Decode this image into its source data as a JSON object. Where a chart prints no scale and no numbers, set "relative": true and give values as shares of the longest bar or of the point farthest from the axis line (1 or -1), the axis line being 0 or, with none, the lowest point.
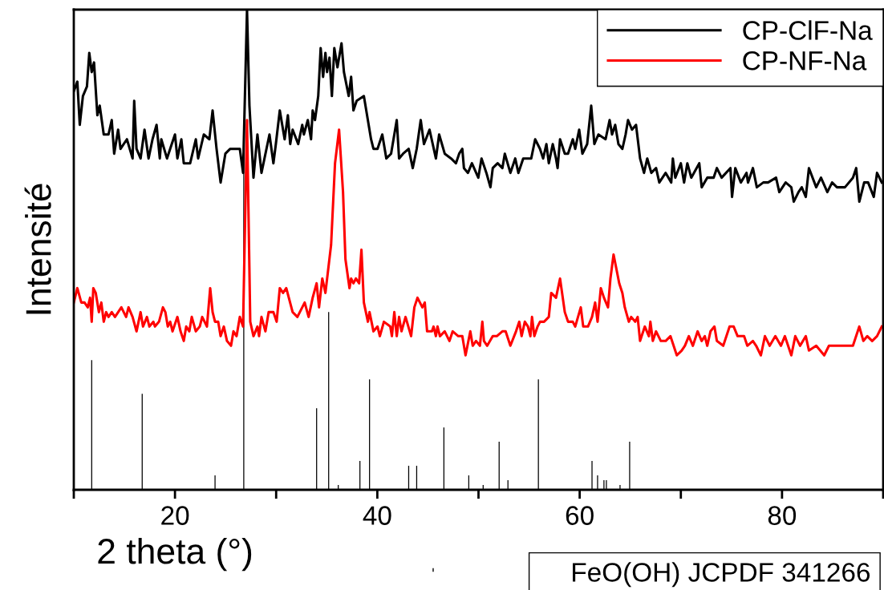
{
  "chart_data": {
    "type": "line",
    "relative": true,
    "xlabel": "2 theta (°)",
    "ylabel": "Intensité",
    "xlim": [
      10,
      90
    ],
    "xticks": [
      {
        "value": 10,
        "label": null
      },
      20,
      {
        "value": 30,
        "label": null
      },
      40,
      {
        "value": 50,
        "label": null
      },
      60,
      {
        "value": 70,
        "label": null
      },
      80,
      {
        "value": 90,
        "label": null
      }
    ],
    "legend": "top right",
    "grid": false,
    "series": [
      {
        "name": "CP-ClF-Na",
        "color": "#000000",
        "x": [
          10.0,
          10.35,
          10.59,
          10.9,
          11.3,
          11.53,
          11.77,
          12.0,
          12.33,
          12.56,
          12.96,
          13.43,
          13.75,
          13.99,
          14.38,
          14.62,
          15.25,
          15.81,
          15.97,
          16.2,
          16.6,
          16.99,
          17.39,
          17.78,
          18.18,
          18.5,
          18.65,
          19.21,
          19.68,
          20.0,
          20.24,
          20.63,
          20.87,
          21.5,
          22.06,
          22.29,
          22.85,
          23.4,
          23.72,
          24.11,
          24.51,
          24.98,
          25.46,
          25.93,
          26.41,
          26.73,
          27.12,
          27.36,
          27.76,
          28.15,
          28.55,
          29.34,
          29.73,
          29.97,
          30.36,
          30.84,
          31.16,
          31.39,
          31.63,
          32.18,
          32.58,
          32.74,
          33.13,
          33.45,
          33.61,
          33.84,
          34.16,
          34.4,
          34.64,
          34.87,
          35.03,
          35.27,
          35.51,
          35.75,
          36.06,
          36.46,
          36.7,
          37.17,
          37.41,
          37.64,
          37.96,
          38.67,
          39.38,
          39.62,
          40.02,
          40.49,
          40.89,
          41.36,
          41.92,
          42.15,
          42.55,
          43.1,
          43.5,
          43.89,
          44.29,
          44.61,
          45.16,
          45.79,
          46.11,
          46.66,
          47.29,
          47.77,
          48.09,
          48.4,
          48.56,
          48.96,
          49.35,
          49.98,
          50.3,
          50.78,
          51.18,
          51.41,
          51.89,
          52.36,
          52.6,
          53.15,
          53.63,
          53.94,
          54.42,
          55.21,
          55.6,
          56.08,
          56.39,
          56.71,
          56.95,
          57.34,
          57.66,
          57.82,
          58.06,
          58.53,
          58.85,
          59.32,
          59.56,
          59.95,
          60.27,
          60.74,
          61.14,
          61.45,
          61.85,
          62.56,
          62.96,
          63.2,
          63.51,
          63.83,
          64.22,
          64.54,
          64.78,
          65.17,
          65.57,
          65.97,
          66.36,
          66.68,
          67.08,
          67.55,
          67.87,
          68.5,
          69.05,
          69.21,
          69.45,
          70.0,
          70.32,
          70.64,
          71.03,
          71.82,
          72.06,
          72.61,
          73.24,
          73.56,
          74.03,
          74.9,
          75.06,
          75.38,
          75.93,
          76.49,
          76.64,
          77.12,
          77.51,
          78.15,
          78.62,
          79.41,
          79.73,
          80.36,
          80.92,
          81.16,
          81.63,
          81.95,
          82.35,
          82.66,
          83.38,
          83.85,
          84.48,
          84.95,
          85.43,
          86.22,
          87.01,
          87.33,
          87.64,
          88.12,
          88.51,
          89.07,
          89.39,
          89.86
        ],
        "values": [
          0.83,
          0.85,
          0.76,
          0.82,
          0.84,
          0.91,
          0.87,
          0.89,
          0.78,
          0.8,
          0.74,
          0.74,
          0.77,
          0.7,
          0.75,
          0.71,
          0.73,
          0.69,
          0.81,
          0.71,
          0.69,
          0.75,
          0.69,
          0.73,
          0.76,
          0.69,
          0.73,
          0.69,
          0.72,
          0.74,
          0.69,
          0.73,
          0.68,
          0.68,
          0.73,
          0.69,
          0.74,
          0.73,
          0.79,
          0.71,
          0.64,
          0.7,
          0.71,
          0.71,
          0.71,
          0.66,
          1.0,
          0.8,
          0.65,
          0.74,
          0.66,
          0.74,
          0.68,
          0.72,
          0.79,
          0.73,
          0.78,
          0.72,
          0.75,
          0.72,
          0.76,
          0.74,
          0.77,
          0.73,
          0.79,
          0.77,
          0.82,
          0.92,
          0.86,
          0.91,
          0.87,
          0.9,
          0.82,
          0.92,
          0.88,
          0.93,
          0.87,
          0.82,
          0.86,
          0.79,
          0.81,
          0.82,
          0.73,
          0.71,
          0.71,
          0.74,
          0.69,
          0.7,
          0.77,
          0.69,
          0.7,
          0.71,
          0.67,
          0.71,
          0.77,
          0.72,
          0.75,
          0.69,
          0.74,
          0.7,
          0.69,
          0.68,
          0.7,
          0.71,
          0.67,
          0.66,
          0.68,
          0.65,
          0.69,
          0.66,
          0.63,
          0.67,
          0.68,
          0.67,
          0.7,
          0.66,
          0.69,
          0.66,
          0.69,
          0.69,
          0.73,
          0.71,
          0.69,
          0.72,
          0.68,
          0.72,
          0.69,
          0.67,
          0.73,
          0.7,
          0.7,
          0.73,
          0.71,
          0.75,
          0.7,
          0.72,
          0.8,
          0.72,
          0.74,
          0.73,
          0.77,
          0.74,
          0.76,
          0.72,
          0.71,
          0.74,
          0.77,
          0.75,
          0.76,
          0.69,
          0.66,
          0.69,
          0.66,
          0.67,
          0.64,
          0.66,
          0.64,
          0.69,
          0.65,
          0.68,
          0.64,
          0.68,
          0.65,
          0.68,
          0.63,
          0.65,
          0.65,
          0.67,
          0.65,
          0.67,
          0.61,
          0.67,
          0.64,
          0.66,
          0.64,
          0.67,
          0.63,
          0.64,
          0.64,
          0.65,
          0.62,
          0.64,
          0.63,
          0.6,
          0.62,
          0.63,
          0.61,
          0.67,
          0.63,
          0.65,
          0.62,
          0.64,
          0.63,
          0.63,
          0.65,
          0.67,
          0.6,
          0.64,
          0.64,
          0.61,
          0.66,
          0.64
        ]
      },
      {
        "name": "CP-NF-Na",
        "color": "#ff0000",
        "x": [
          10.0,
          10.35,
          10.74,
          11.06,
          11.38,
          11.61,
          11.77,
          11.93,
          12.17,
          12.48,
          12.72,
          12.96,
          13.2,
          13.43,
          13.75,
          14.07,
          14.7,
          15.17,
          15.41,
          15.81,
          16.2,
          16.6,
          16.84,
          17.23,
          17.47,
          17.86,
          18.02,
          18.42,
          18.81,
          19.05,
          19.29,
          19.53,
          19.76,
          20.24,
          20.55,
          20.87,
          21.11,
          21.42,
          21.66,
          22.06,
          22.45,
          22.69,
          23.16,
          23.48,
          23.72,
          23.96,
          24.27,
          24.51,
          24.83,
          25.14,
          25.54,
          25.78,
          26.09,
          26.41,
          26.73,
          27.12,
          27.44,
          27.76,
          28.15,
          28.31,
          28.55,
          28.94,
          29.26,
          29.73,
          30.05,
          30.36,
          30.68,
          31.0,
          31.63,
          32.1,
          32.82,
          33.21,
          33.61,
          34.0,
          34.24,
          34.56,
          34.87,
          35.43,
          35.82,
          36.22,
          36.61,
          36.85,
          37.25,
          37.41,
          37.64,
          37.88,
          38.2,
          38.43,
          38.67,
          39.07,
          39.23,
          39.62,
          40.02,
          40.25,
          40.65,
          41.28,
          41.44,
          41.68,
          41.92,
          42.15,
          42.39,
          42.79,
          43.34,
          43.66,
          43.97,
          44.45,
          44.69,
          44.92,
          45.4,
          45.56,
          45.79,
          45.95,
          46.19,
          46.66,
          47.13,
          47.45,
          48.0,
          48.4,
          48.72,
          49.19,
          49.43,
          49.75,
          50.14,
          50.38,
          50.54,
          50.86,
          51.41,
          51.81,
          52.36,
          52.68,
          53.15,
          53.71,
          54.03,
          54.26,
          54.58,
          54.89,
          55.13,
          55.29,
          55.52,
          55.84,
          56.08,
          56.48,
          56.95,
          57.19,
          57.66,
          58.06,
          58.53,
          58.85,
          59.32,
          59.56,
          60.11,
          60.35,
          60.82,
          61.22,
          61.53,
          61.77,
          62.09,
          62.4,
          62.8,
          63.04,
          63.35,
          63.91,
          64.22,
          64.46,
          64.86,
          65.09,
          65.49,
          65.73,
          65.97,
          66.44,
          66.84,
          66.99,
          67.23,
          67.55,
          68.02,
          68.5,
          68.97,
          69.6,
          70.08,
          70.4,
          70.79,
          71.19,
          71.66,
          72.06,
          72.37,
          72.61,
          72.93,
          73.32,
          73.56,
          74.19,
          74.82,
          75.22,
          75.61,
          76.25,
          76.57,
          77.12,
          77.44,
          77.91,
          78.31,
          78.78,
          79.34,
          79.89,
          80.28,
          80.92,
          81.31,
          81.79,
          82.35,
          82.66,
          83.38,
          84.17,
          84.64,
          85.59,
          86.38,
          87.01,
          87.64,
          88.04,
          88.43,
          88.91,
          89.39,
          89.86
        ],
        "values": [
          0.39,
          0.42,
          0.39,
          0.39,
          0.38,
          0.4,
          0.35,
          0.42,
          0.41,
          0.37,
          0.39,
          0.35,
          0.37,
          0.36,
          0.37,
          0.36,
          0.38,
          0.36,
          0.38,
          0.36,
          0.33,
          0.37,
          0.34,
          0.36,
          0.34,
          0.35,
          0.34,
          0.35,
          0.38,
          0.37,
          0.34,
          0.35,
          0.33,
          0.36,
          0.33,
          0.31,
          0.34,
          0.33,
          0.36,
          0.33,
          0.34,
          0.36,
          0.34,
          0.42,
          0.37,
          0.35,
          0.35,
          0.32,
          0.34,
          0.31,
          0.3,
          0.33,
          0.32,
          0.36,
          0.34,
          0.77,
          0.35,
          0.32,
          0.34,
          0.32,
          0.36,
          0.33,
          0.37,
          0.37,
          0.35,
          0.42,
          0.41,
          0.42,
          0.37,
          0.36,
          0.39,
          0.36,
          0.4,
          0.43,
          0.38,
          0.44,
          0.41,
          0.51,
          0.68,
          0.75,
          0.62,
          0.48,
          0.42,
          0.44,
          0.43,
          0.44,
          0.43,
          0.5,
          0.39,
          0.35,
          0.37,
          0.33,
          0.34,
          0.32,
          0.35,
          0.34,
          0.32,
          0.37,
          0.32,
          0.36,
          0.33,
          0.36,
          0.32,
          0.38,
          0.4,
          0.38,
          0.39,
          0.33,
          0.33,
          0.34,
          0.32,
          0.34,
          0.32,
          0.33,
          0.31,
          0.33,
          0.32,
          0.32,
          0.28,
          0.33,
          0.3,
          0.31,
          0.3,
          0.35,
          0.31,
          0.3,
          0.32,
          0.32,
          0.33,
          0.33,
          0.3,
          0.33,
          0.35,
          0.32,
          0.35,
          0.34,
          0.32,
          0.36,
          0.32,
          0.34,
          0.35,
          0.35,
          0.36,
          0.41,
          0.4,
          0.44,
          0.37,
          0.35,
          0.35,
          0.34,
          0.38,
          0.34,
          0.34,
          0.36,
          0.39,
          0.35,
          0.42,
          0.4,
          0.38,
          0.44,
          0.49,
          0.43,
          0.41,
          0.38,
          0.35,
          0.36,
          0.35,
          0.36,
          0.31,
          0.34,
          0.32,
          0.35,
          0.31,
          0.33,
          0.31,
          0.31,
          0.32,
          0.28,
          0.29,
          0.3,
          0.32,
          0.3,
          0.33,
          0.31,
          0.32,
          0.3,
          0.33,
          0.34,
          0.31,
          0.3,
          0.34,
          0.34,
          0.32,
          0.32,
          0.3,
          0.31,
          0.3,
          0.28,
          0.32,
          0.3,
          0.32,
          0.3,
          0.32,
          0.28,
          0.32,
          0.3,
          0.32,
          0.29,
          0.3,
          0.28,
          0.3,
          0.3,
          0.3,
          0.3,
          0.34,
          0.31,
          0.32,
          0.31,
          0.32,
          0.34
        ]
      },
      {
        "name": "FeO(OH) JCPDF 341266",
        "type": "bar",
        "color": "#000000",
        "x": [
          11.77,
          16.76,
          23.96,
          26.8,
          34.0,
          35.19,
          36.14,
          38.28,
          39.23,
          43.1,
          43.89,
          46.58,
          49.04,
          50.46,
          52.04,
          52.91,
          55.92,
          61.22,
          61.77,
          62.4,
          62.64,
          63.99,
          64.94
        ],
        "values": [
          0.27,
          0.2,
          0.03,
          0.77,
          0.17,
          0.37,
          0.01,
          0.06,
          0.23,
          0.05,
          0.05,
          0.13,
          0.03,
          0.01,
          0.1,
          0.02,
          0.23,
          0.06,
          0.03,
          0.02,
          0.02,
          0.01,
          0.1
        ]
      }
    ]
  }
}
